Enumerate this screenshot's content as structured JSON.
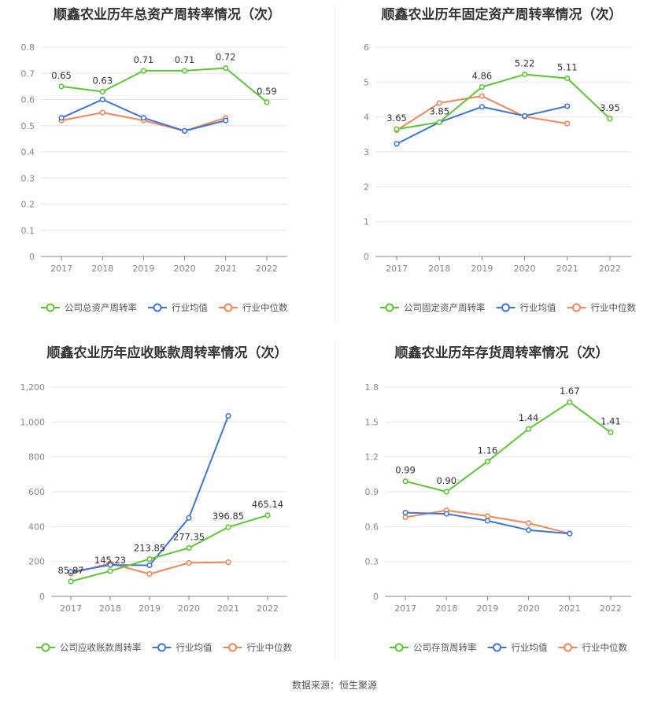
{
  "colors": {
    "company": "#5ac732",
    "industry_avg": "#3f74d8",
    "industry_median": "#f28658",
    "grid": "#e6e6e6",
    "axis": "#888888"
  },
  "source": "数据来源：恒生聚源",
  "chart_data": [
    {
      "type": "line",
      "title": "顺鑫农业历年总资产周转率情况（次）",
      "categories": [
        "2017",
        "2018",
        "2019",
        "2020",
        "2021",
        "2022"
      ],
      "ylim": [
        0,
        0.8
      ],
      "yticks": [
        "0",
        "0.1",
        "0.2",
        "0.3",
        "0.4",
        "0.5",
        "0.6",
        "0.7",
        "0.8"
      ],
      "ytick_values": [
        0,
        0.1,
        0.2,
        0.3,
        0.4,
        0.5,
        0.6,
        0.7,
        0.8
      ],
      "legend_position": "bottom",
      "series": [
        {
          "name": "公司总资产周转率",
          "color": "#5ac732",
          "values": [
            0.65,
            0.63,
            0.71,
            0.71,
            0.72,
            0.59
          ],
          "labels": [
            "0.65",
            "0.63",
            "0.71",
            "0.71",
            "0.72",
            "0.59"
          ]
        },
        {
          "name": "行业均值",
          "color": "#3f74d8",
          "values": [
            0.53,
            0.6,
            0.53,
            0.48,
            0.52,
            null
          ]
        },
        {
          "name": "行业中位数",
          "color": "#f28658",
          "values": [
            0.52,
            0.55,
            0.52,
            0.48,
            0.53,
            null
          ]
        }
      ]
    },
    {
      "type": "line",
      "title": "顺鑫农业历年固定资产周转率情况（次）",
      "categories": [
        "2017",
        "2018",
        "2019",
        "2020",
        "2021",
        "2022"
      ],
      "ylim": [
        0,
        6
      ],
      "yticks": [
        "0",
        "1",
        "2",
        "3",
        "4",
        "5",
        "6"
      ],
      "ytick_values": [
        0,
        1,
        2,
        3,
        4,
        5,
        6
      ],
      "legend_position": "bottom",
      "series": [
        {
          "name": "公司固定资产周转率",
          "color": "#5ac732",
          "values": [
            3.65,
            3.85,
            4.86,
            5.22,
            5.11,
            3.95
          ],
          "labels": [
            "3.65",
            "3.85",
            "4.86",
            "5.22",
            "5.11",
            "3.95"
          ]
        },
        {
          "name": "行业均值",
          "color": "#3f74d8",
          "values": [
            3.23,
            3.85,
            4.29,
            4.03,
            4.31,
            null
          ]
        },
        {
          "name": "行业中位数",
          "color": "#f28658",
          "values": [
            3.62,
            4.4,
            4.6,
            4.01,
            3.81,
            null
          ]
        }
      ]
    },
    {
      "type": "line",
      "title": "顺鑫农业历年应收账款周转率情况（次）",
      "categories": [
        "2017",
        "2018",
        "2019",
        "2020",
        "2021",
        "2022"
      ],
      "ylim": [
        0,
        1200
      ],
      "yticks": [
        "0",
        "200",
        "400",
        "600",
        "800",
        "1,000",
        "1,200"
      ],
      "ytick_values": [
        0,
        200,
        400,
        600,
        800,
        1000,
        1200
      ],
      "legend_position": "bottom",
      "series": [
        {
          "name": "公司应收账款周转率",
          "color": "#5ac732",
          "values": [
            85.87,
            145.23,
            213.85,
            277.35,
            396.85,
            465.14
          ],
          "labels": [
            "85.87",
            "145.23",
            "213.85",
            "277.35",
            "396.85",
            "465.14"
          ]
        },
        {
          "name": "行业均值",
          "color": "#3f74d8",
          "values": [
            140,
            180,
            178,
            450,
            1035,
            null
          ]
        },
        {
          "name": "行业中位数",
          "color": "#f28658",
          "values": [
            130,
            190,
            128,
            192,
            196,
            null
          ]
        }
      ]
    },
    {
      "type": "line",
      "title": "顺鑫农业历年存货周转率情况（次）",
      "categories": [
        "2017",
        "2018",
        "2019",
        "2020",
        "2021",
        "2022"
      ],
      "ylim": [
        0,
        1.8
      ],
      "yticks": [
        "0",
        "0.3",
        "0.6",
        "0.9",
        "1.2",
        "1.5",
        "1.8"
      ],
      "ytick_values": [
        0,
        0.3,
        0.6,
        0.9,
        1.2,
        1.5,
        1.8
      ],
      "legend_position": "bottom",
      "series": [
        {
          "name": "公司存货周转率",
          "color": "#5ac732",
          "values": [
            0.99,
            0.9,
            1.16,
            1.44,
            1.67,
            1.41
          ],
          "labels": [
            "0.99",
            "0.90",
            "1.16",
            "1.44",
            "1.67",
            "1.41"
          ]
        },
        {
          "name": "行业均值",
          "color": "#3f74d8",
          "values": [
            0.72,
            0.71,
            0.65,
            0.57,
            0.54,
            null
          ]
        },
        {
          "name": "行业中位数",
          "color": "#f28658",
          "values": [
            0.68,
            0.74,
            0.69,
            0.63,
            0.54,
            null
          ]
        }
      ]
    }
  ]
}
